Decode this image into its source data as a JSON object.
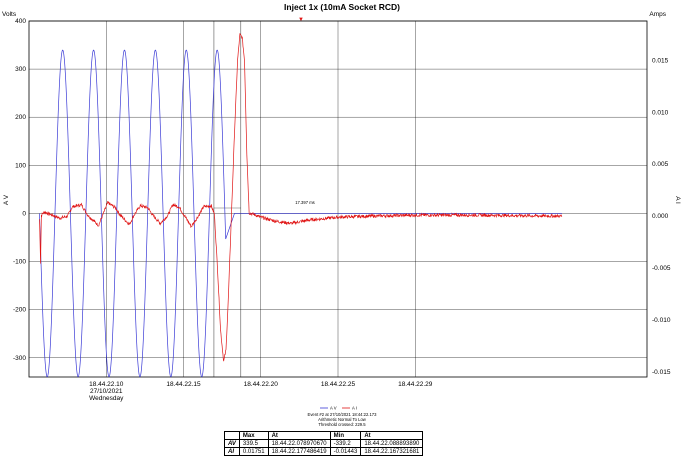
{
  "chart_data": {
    "type": "line",
    "title": "Inject 1x (10mA Socket RCD)",
    "y_left_unit": "Volts",
    "y_right_unit": "Amps",
    "y_left_label": "A V",
    "y_right_label": "A I",
    "y_left_range": [
      -340,
      400
    ],
    "y_left_ticks": [
      "400",
      "300",
      "200",
      "100",
      "0",
      "-100",
      "-200",
      "-300"
    ],
    "y_left_tick_values": [
      400,
      300,
      200,
      100,
      0,
      -100,
      -200,
      -300
    ],
    "y_right_range": [
      -0.0155,
      0.0188
    ],
    "y_right_ticks": [
      "0.015",
      "0.010",
      "0.005",
      "0.000",
      "-0.005",
      "-0.010",
      "-0.015"
    ],
    "y_right_tick_values": [
      0.015,
      0.01,
      0.005,
      0.0,
      -0.005,
      -0.01,
      -0.015
    ],
    "x_unit": "s",
    "x_range": [
      18.05,
      18.45
    ],
    "x_tick_values": [
      18.1,
      18.15,
      18.2,
      18.25,
      18.3
    ],
    "x_ticks": [
      [
        "18.44.22.10",
        "27/10/2021",
        "Wednesday"
      ],
      [
        "18.44.22.15"
      ],
      [
        "18.44.22.20"
      ],
      [
        "18.44.22.25"
      ],
      [
        "18.44.22.29"
      ]
    ],
    "grid": true,
    "legend": [
      "A V",
      "A I"
    ],
    "legend_position": "bottom-center",
    "series": [
      {
        "name": "A V",
        "color": "#3a3ad6",
        "axis": "left",
        "segments": [
          {
            "t_start": 18.0568,
            "t_end": 18.1773,
            "amplitude": 339.5,
            "frequency_hz": 50,
            "phase_start": 0,
            "waveform": "sine"
          },
          {
            "t_start": 18.1773,
            "t_end": 18.183,
            "from": 0,
            "to": 0,
            "waveform": "decay"
          }
        ],
        "after_trip_value": 0
      },
      {
        "name": "A I",
        "color": "#e01414",
        "axis": "right",
        "points": [
          [
            18.0568,
            -0.0003
          ],
          [
            18.0575,
            -0.0045
          ],
          [
            18.058,
            0.0001
          ],
          [
            18.06,
            0.0004
          ],
          [
            18.065,
            0.0001
          ],
          [
            18.07,
            -0.0002
          ],
          [
            18.075,
            0.0
          ],
          [
            18.078,
            0.0009
          ],
          [
            18.084,
            0.0011
          ],
          [
            18.088,
            0.0001
          ],
          [
            18.095,
            -0.0009
          ],
          [
            18.098,
            0.0002
          ],
          [
            18.101,
            0.0013
          ],
          [
            18.106,
            0.0008
          ],
          [
            18.109,
            0.0001
          ],
          [
            18.115,
            -0.0008
          ],
          [
            18.118,
            0.0001
          ],
          [
            18.122,
            0.001
          ],
          [
            18.127,
            0.0008
          ],
          [
            18.13,
            0.0001
          ],
          [
            18.135,
            -0.0007
          ],
          [
            18.14,
            0.0001
          ],
          [
            18.143,
            0.0011
          ],
          [
            18.147,
            0.0009
          ],
          [
            18.15,
            0.0002
          ],
          [
            18.155,
            -0.001
          ],
          [
            18.16,
            0.0001
          ],
          [
            18.163,
            0.0009
          ],
          [
            18.168,
            0.001
          ],
          [
            18.17,
            0.0002
          ],
          [
            18.172,
            -0.005
          ],
          [
            18.174,
            -0.011
          ],
          [
            18.176,
            -0.014
          ],
          [
            18.1775,
            -0.0129
          ],
          [
            18.179,
            -0.008
          ],
          [
            18.181,
            0.0
          ],
          [
            18.183,
            0.008
          ],
          [
            18.185,
            0.015
          ],
          [
            18.1865,
            0.0175
          ],
          [
            18.188,
            0.0172
          ],
          [
            18.1895,
            0.015
          ],
          [
            18.191,
            0.006
          ],
          [
            18.1925,
            0.0003
          ],
          [
            18.195,
            0.0002
          ],
          [
            18.2,
            -0.0001
          ],
          [
            18.21,
            -0.0005
          ],
          [
            18.22,
            -0.0007
          ],
          [
            18.23,
            -0.0004
          ],
          [
            18.25,
            -0.0001
          ],
          [
            18.27,
            0.0
          ],
          [
            18.3,
            0.0001
          ],
          [
            18.34,
            0.0001
          ],
          [
            18.395,
            0.0
          ]
        ],
        "noise": 0.0003,
        "t_end": 18.395
      }
    ],
    "markers": {
      "cursor_label": "17.397 ms",
      "trigger": "▼"
    },
    "info_lines": [
      "Event #2 at 27/10/2021 18:44:22.173",
      "Arithmetic Normal To Low",
      "Threshold crossed: 229.5"
    ],
    "stats_table": {
      "headers": [
        "",
        "Max",
        "At",
        "Min",
        "At"
      ],
      "rows": [
        [
          "AV",
          "339.5",
          "18.44.22.078970670",
          "-339.2",
          "18.44.22.088893890"
        ],
        [
          "AI",
          "0.01751",
          "18.44.22.177486419",
          "-0.01443",
          "18.44.22.167321681"
        ]
      ]
    }
  }
}
